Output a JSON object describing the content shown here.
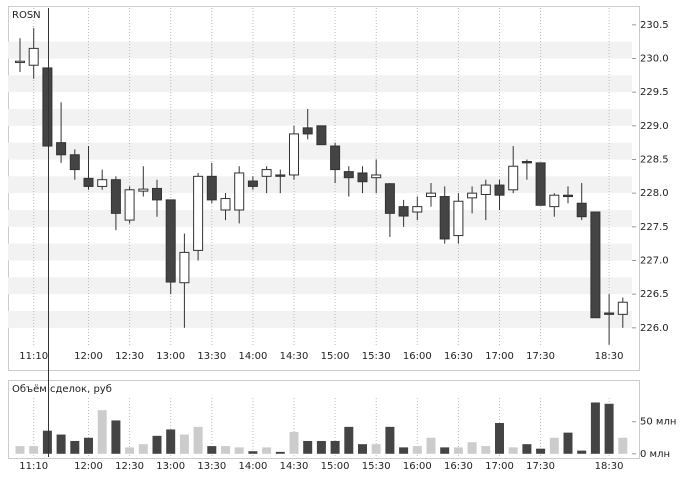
{
  "chart_data": [
    {
      "type": "candlestick",
      "title": "ROSN",
      "categories": [
        null,
        "11:10",
        null,
        null,
        null,
        "12:00",
        null,
        null,
        "12:30",
        null,
        null,
        "13:00",
        null,
        null,
        "13:30",
        null,
        null,
        "14:00",
        null,
        null,
        "14:30",
        null,
        null,
        "15:00",
        null,
        null,
        "15:30",
        null,
        null,
        "16:00",
        null,
        null,
        "16:30",
        null,
        null,
        "17:00",
        null,
        null,
        "17:30",
        null,
        null,
        null,
        null,
        "18:30",
        null
      ],
      "open": [
        229.94,
        229.9,
        229.86,
        228.75,
        228.57,
        228.22,
        228.1,
        228.2,
        227.6,
        228.03,
        228.07,
        227.9,
        226.67,
        227.15,
        228.25,
        227.75,
        227.75,
        228.18,
        228.25,
        228.27,
        228.27,
        228.97,
        229.0,
        228.7,
        228.32,
        228.3,
        228.23,
        228.14,
        227.8,
        227.72,
        227.95,
        227.95,
        227.37,
        227.93,
        227.98,
        228.12,
        228.05,
        228.47,
        228.45,
        227.8,
        227.97,
        227.85,
        227.72,
        226.22,
        226.2
      ],
      "high": [
        230.3,
        230.45,
        229.86,
        229.35,
        228.65,
        228.7,
        228.35,
        228.25,
        228.1,
        228.4,
        228.2,
        227.9,
        227.4,
        228.3,
        228.45,
        228.0,
        228.4,
        228.25,
        228.4,
        228.35,
        229.0,
        229.25,
        229.0,
        228.75,
        228.4,
        228.4,
        228.5,
        228.15,
        227.9,
        227.95,
        228.15,
        228.1,
        228.0,
        228.1,
        228.2,
        228.2,
        228.7,
        228.5,
        228.45,
        228.0,
        228.1,
        228.15,
        227.72,
        226.5,
        226.45
      ],
      "low": [
        229.8,
        229.7,
        228.7,
        228.45,
        228.2,
        228.05,
        228.05,
        227.45,
        227.55,
        227.95,
        227.65,
        226.5,
        226.0,
        227.0,
        227.85,
        227.6,
        227.55,
        228.05,
        228.0,
        228.0,
        228.2,
        228.8,
        228.72,
        228.15,
        227.95,
        228.0,
        228.0,
        227.35,
        227.5,
        227.6,
        227.8,
        227.25,
        227.25,
        227.7,
        227.6,
        227.75,
        228.0,
        228.2,
        227.82,
        227.65,
        227.85,
        227.6,
        226.15,
        225.75,
        226.0
      ],
      "close": [
        229.96,
        230.15,
        228.7,
        228.57,
        228.35,
        228.1,
        228.2,
        227.7,
        228.05,
        228.06,
        227.9,
        226.68,
        227.12,
        228.25,
        227.9,
        227.92,
        228.3,
        228.1,
        228.35,
        228.25,
        228.88,
        228.88,
        228.72,
        228.35,
        228.23,
        228.17,
        228.27,
        227.7,
        227.66,
        227.8,
        228.0,
        227.32,
        227.88,
        228.0,
        228.12,
        227.97,
        228.4,
        228.45,
        227.82,
        227.97,
        227.95,
        227.65,
        226.15,
        226.2,
        226.38
      ],
      "ylim": [
        225.73,
        230.75
      ],
      "yticks": [
        {
          "value": 226,
          "label": "226.0"
        },
        226.5,
        {
          "value": 227,
          "label": "227.0"
        },
        227.5,
        {
          "value": 228,
          "label": "228.0"
        },
        228.5,
        {
          "value": 229,
          "label": "229.0"
        },
        229.5,
        {
          "value": 230,
          "label": "230.0"
        },
        230.5
      ],
      "up_color": "#ffffff",
      "down_color": "#444444",
      "grid": true
    },
    {
      "type": "bar",
      "title": "Объём сделок, руб",
      "categories": [
        null,
        "11:10",
        null,
        null,
        null,
        "12:00",
        null,
        null,
        "12:30",
        null,
        null,
        "13:00",
        null,
        null,
        "13:30",
        null,
        null,
        "14:00",
        null,
        null,
        "14:30",
        null,
        null,
        "15:00",
        null,
        null,
        "15:30",
        null,
        null,
        "16:00",
        null,
        null,
        "16:30",
        null,
        null,
        "17:00",
        null,
        null,
        "17:30",
        null,
        null,
        null,
        null,
        "18:30",
        null
      ],
      "values": [
        12,
        12,
        36,
        30,
        20,
        25,
        68,
        52,
        10,
        15,
        28,
        38,
        30,
        42,
        12,
        12,
        10,
        4,
        10,
        3,
        34,
        20,
        20,
        20,
        42,
        15,
        15,
        42,
        10,
        12,
        25,
        10,
        10,
        18,
        12,
        48,
        10,
        15,
        8,
        25,
        33,
        5,
        80,
        78,
        25
      ],
      "ylim": [
        -5,
        87
      ],
      "yticks": [
        {
          "value": 0,
          "label": "0 млн"
        },
        {
          "value": 50,
          "label": "50 млн"
        }
      ],
      "up_color": "#cccccc",
      "down_color": "#444444"
    }
  ]
}
